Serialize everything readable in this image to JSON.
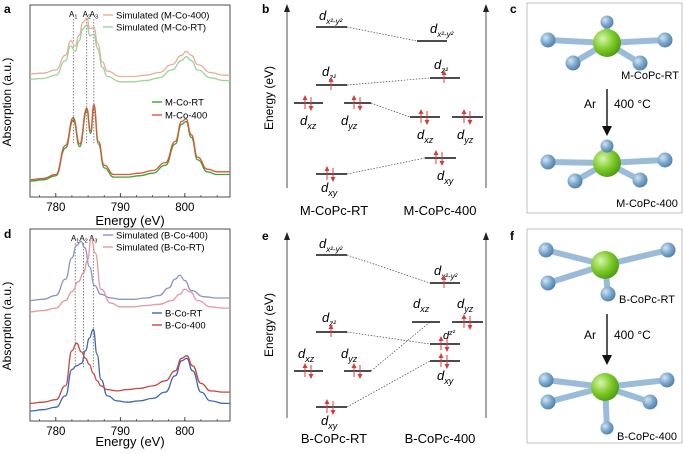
{
  "panel_labels": {
    "a": "a",
    "b": "b",
    "c": "c",
    "d": "d",
    "e": "e",
    "f": "f"
  },
  "colors": {
    "sim_400": "#e8b09a",
    "sim_rt": "#9fd29b",
    "exp_rt_a": "#3f9f3c",
    "exp_400": "#d75a35",
    "sim_400_d": "#8a94c8",
    "sim_rt_d": "#e39aa0",
    "exp_rt_d": "#3f67b0",
    "exp_400_d": "#c6473f",
    "atom_blue": "#7aa7cc",
    "atom_green": "#7ccb28",
    "arrow_red": "#d93b3b"
  },
  "chart_data": [
    {
      "type": "line",
      "panel": "a",
      "xlabel": "Energy (eV)",
      "ylabel": "Absorption (a.u.)",
      "xlim": [
        776,
        807
      ],
      "x_ticks": [
        "780",
        "790",
        "800"
      ],
      "peak_labels": [
        "A1",
        "A2",
        "A3"
      ],
      "peak_positions": [
        782.7,
        784.8,
        785.9
      ],
      "series": [
        {
          "name": "Simulated (M-Co-400)",
          "x": [
            776,
            778,
            780,
            781.5,
            782.3,
            783,
            783.6,
            784.2,
            784.8,
            785.3,
            785.9,
            786.5,
            787.2,
            788,
            790,
            792,
            794,
            796,
            798,
            799.5,
            800.2,
            801,
            802,
            804,
            806,
            807
          ],
          "y": [
            1.83,
            1.835,
            1.86,
            1.97,
            2.08,
            2.04,
            2.12,
            2.22,
            2.25,
            2.17,
            2.18,
            2.06,
            1.92,
            1.85,
            1.81,
            1.81,
            1.82,
            1.84,
            1.9,
            1.97,
            2.0,
            1.97,
            1.9,
            1.84,
            1.82,
            1.82
          ]
        },
        {
          "name": "Simulated (M-Co-RT)",
          "x": [
            776,
            778,
            780,
            781.5,
            782.3,
            783,
            783.6,
            784.2,
            784.8,
            785.3,
            785.9,
            786.5,
            787.2,
            788,
            790,
            792,
            794,
            796,
            798,
            799.5,
            800.2,
            801,
            802,
            804,
            806,
            807
          ],
          "y": [
            1.79,
            1.795,
            1.82,
            1.93,
            2.04,
            2.0,
            2.08,
            2.17,
            2.2,
            2.12,
            2.13,
            2.02,
            1.88,
            1.81,
            1.77,
            1.77,
            1.78,
            1.8,
            1.86,
            1.93,
            1.96,
            1.93,
            1.86,
            1.8,
            1.78,
            1.78
          ]
        },
        {
          "name": "M-Co-RT",
          "x": [
            776,
            778,
            780,
            781.5,
            782.7,
            783.7,
            784.8,
            785.4,
            785.9,
            786.6,
            787.5,
            789,
            791,
            793,
            795,
            797,
            798.5,
            799.5,
            800.2,
            801,
            802,
            803.5,
            805,
            807
          ],
          "y": [
            1.02,
            1.03,
            1.06,
            1.27,
            1.48,
            1.28,
            1.55,
            1.38,
            1.58,
            1.3,
            1.12,
            1.05,
            1.05,
            1.06,
            1.08,
            1.14,
            1.3,
            1.45,
            1.47,
            1.35,
            1.18,
            1.09,
            1.07,
            1.07
          ]
        },
        {
          "name": "M-Co-400",
          "x": [
            776,
            778,
            780,
            781.5,
            782.7,
            783.7,
            784.8,
            785.4,
            785.9,
            786.6,
            787.5,
            789,
            791,
            793,
            795,
            797,
            798.5,
            799.5,
            800.2,
            801,
            802,
            803.5,
            805,
            807
          ],
          "y": [
            1.03,
            1.04,
            1.07,
            1.29,
            1.5,
            1.3,
            1.57,
            1.4,
            1.6,
            1.32,
            1.14,
            1.07,
            1.07,
            1.08,
            1.1,
            1.16,
            1.32,
            1.47,
            1.49,
            1.37,
            1.2,
            1.11,
            1.09,
            1.09
          ]
        }
      ],
      "legend_top": [
        "Simulated (M-Co-400)",
        "Simulated (M-Co-RT)"
      ],
      "legend_bottom": [
        "M-Co-RT",
        "M-Co-400"
      ],
      "legend": "top-right and middle-right"
    },
    {
      "type": "line",
      "panel": "d",
      "xlabel": "Energy (eV)",
      "ylabel": "Absorption (a.u.)",
      "xlim": [
        776,
        807
      ],
      "x_ticks": [
        "780",
        "790",
        "800"
      ],
      "peak_labels": [
        "A1",
        "A2",
        "A3"
      ],
      "peak_positions": [
        783.0,
        784.3,
        785.8
      ],
      "series": [
        {
          "name": "Simulated (B-Co-400)",
          "x": [
            776,
            778,
            780,
            781.5,
            782.5,
            783.2,
            783.9,
            784.5,
            785.2,
            786,
            787,
            788.5,
            790,
            792,
            794,
            796,
            797.5,
            798.5,
            799.2,
            800,
            801,
            803,
            805,
            807
          ],
          "y": [
            1.88,
            1.89,
            1.92,
            2.05,
            2.22,
            2.32,
            2.35,
            2.3,
            2.15,
            2.0,
            1.93,
            1.9,
            1.89,
            1.89,
            1.9,
            1.92,
            1.98,
            2.05,
            2.08,
            2.04,
            1.96,
            1.91,
            1.9,
            1.9
          ]
        },
        {
          "name": "Simulated (B-Co-RT)",
          "x": [
            776,
            778,
            780,
            781.5,
            782.5,
            783.5,
            784.3,
            784.9,
            785.5,
            786.1,
            787,
            788.5,
            790,
            792,
            794,
            796,
            798,
            799.2,
            800,
            800.8,
            802,
            804,
            806,
            807
          ],
          "y": [
            1.79,
            1.8,
            1.82,
            1.88,
            1.95,
            2.03,
            2.1,
            2.2,
            2.38,
            2.26,
            1.97,
            1.86,
            1.83,
            1.83,
            1.84,
            1.85,
            1.88,
            1.93,
            1.97,
            1.95,
            1.88,
            1.83,
            1.82,
            1.82
          ]
        },
        {
          "name": "B-Co-RT",
          "x": [
            776,
            778,
            780,
            781.5,
            782.5,
            783.2,
            784,
            784.6,
            785.2,
            785.8,
            786.4,
            787,
            788,
            789.5,
            791,
            793,
            795,
            797,
            798.5,
            799.5,
            800.3,
            801.2,
            802.5,
            804,
            806,
            807
          ],
          "y": [
            1.0,
            1.01,
            1.03,
            1.12,
            1.33,
            1.36,
            1.38,
            1.48,
            1.58,
            1.65,
            1.45,
            1.25,
            1.12,
            1.08,
            1.07,
            1.08,
            1.1,
            1.15,
            1.28,
            1.4,
            1.42,
            1.32,
            1.15,
            1.08,
            1.06,
            1.06
          ]
        },
        {
          "name": "B-Co-400",
          "x": [
            776,
            778,
            780,
            781.5,
            782.5,
            783.2,
            784,
            784.6,
            785.2,
            785.8,
            786.4,
            787,
            788,
            789.5,
            791,
            793,
            795,
            797,
            798.5,
            799.5,
            800.3,
            801.2,
            802.5,
            804,
            806,
            807
          ],
          "y": [
            1.06,
            1.07,
            1.09,
            1.2,
            1.48,
            1.54,
            1.47,
            1.42,
            1.37,
            1.3,
            1.24,
            1.2,
            1.17,
            1.16,
            1.17,
            1.18,
            1.2,
            1.24,
            1.32,
            1.42,
            1.44,
            1.36,
            1.22,
            1.16,
            1.15,
            1.15
          ]
        }
      ],
      "legend_top": [
        "Simulated (B-Co-400)",
        "Simulated (B-Co-RT)"
      ],
      "legend_bottom": [
        "B-Co-RT",
        "B-Co-400"
      ],
      "legend": "top-right and middle-right"
    }
  ],
  "panel_b": {
    "ylabel": "Energy (eV)",
    "left_label": "M-CoPc-RT",
    "right_label": "M-CoPc-400",
    "orbitals": {
      "x2y2": "x²-y²",
      "z2": "z²",
      "xz": "xz",
      "yz": "yz",
      "xy": "xy"
    }
  },
  "panel_e": {
    "ylabel": "Energy (eV)",
    "left_label": "B-CoPc-RT",
    "right_label": "B-CoPc-400"
  },
  "panel_c": {
    "top_label": "M-CoPc-RT",
    "arrow_gas": "Ar",
    "arrow_temp": "400 °C",
    "bottom_label": "M-CoPc-400"
  },
  "panel_f": {
    "top_label": "B-CoPc-RT",
    "arrow_gas": "Ar",
    "arrow_temp": "400 °C",
    "bottom_label": "B-CoPc-400"
  },
  "orbital_d": "d"
}
